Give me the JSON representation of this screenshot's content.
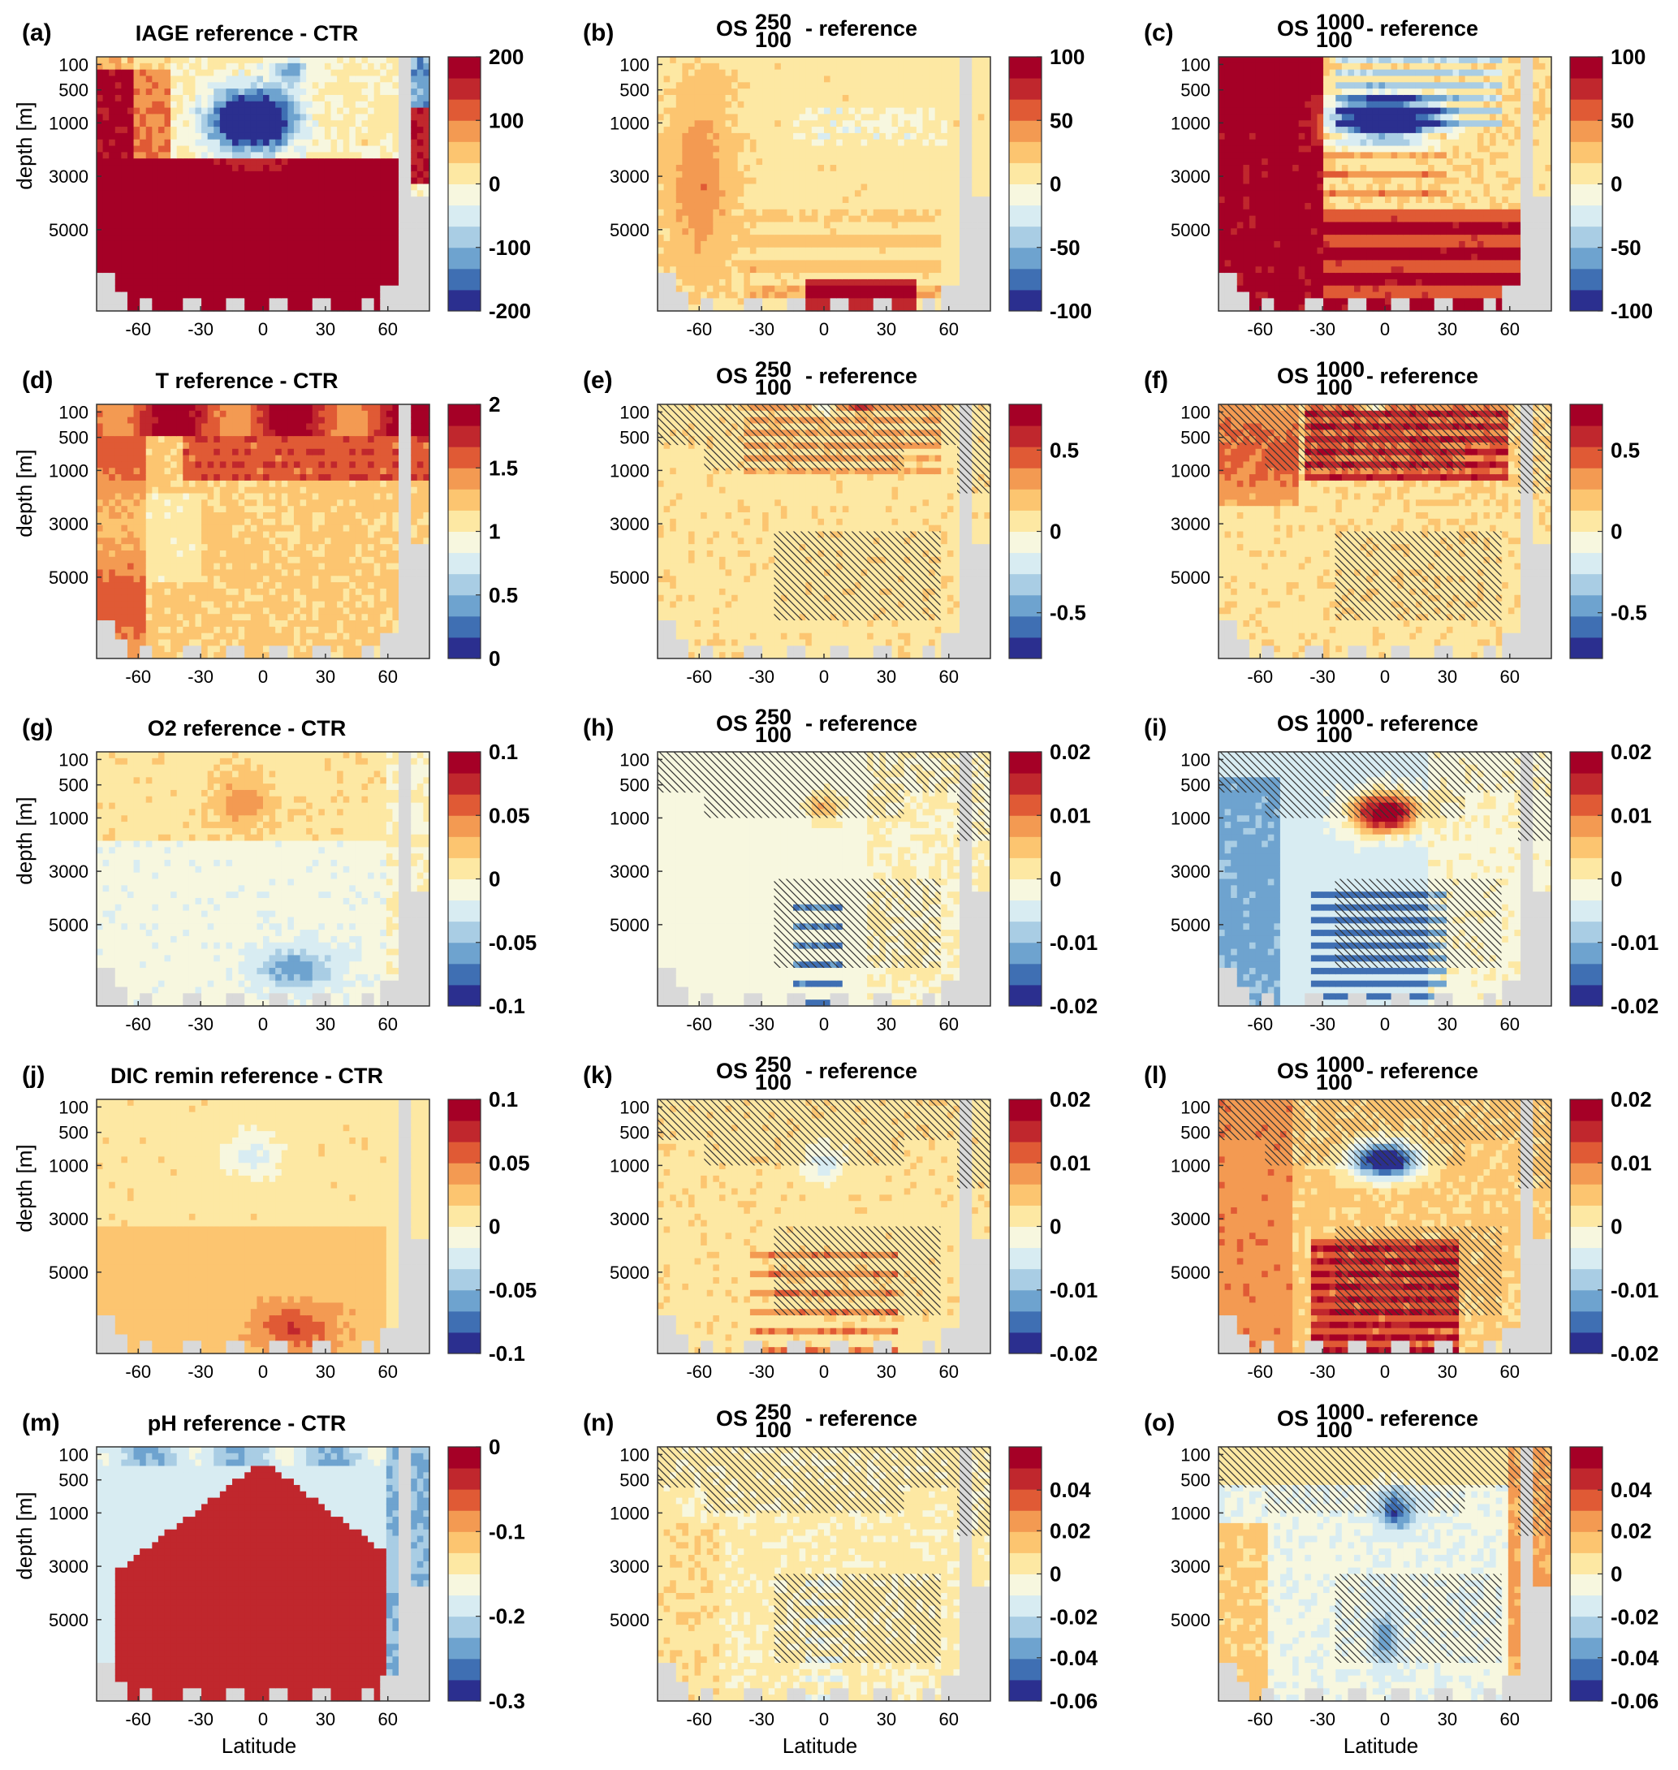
{
  "chart_data": [
    {
      "type": "heatmap",
      "panel_label": "(a)",
      "title_main": "IAGE reference - CTR",
      "title_sup": "",
      "title_sub": "",
      "title_tail": "",
      "cbar_ticks": [
        "200",
        "100",
        "0",
        "-100",
        "-200"
      ],
      "cmin": -200,
      "cmax": 200,
      "pattern": "iage_ref",
      "hatch": false
    },
    {
      "type": "heatmap",
      "panel_label": "(b)",
      "title_main": "OS",
      "title_sup": "250",
      "title_sub": "100",
      "title_tail": "- reference",
      "cbar_ticks": [
        "100",
        "50",
        "0",
        "-50",
        "-100"
      ],
      "cmin": -100,
      "cmax": 100,
      "pattern": "iage_250",
      "hatch": false
    },
    {
      "type": "heatmap",
      "panel_label": "(c)",
      "title_main": "OS",
      "title_sup": "1000",
      "title_sub": "100",
      "title_tail": "- reference",
      "cbar_ticks": [
        "100",
        "50",
        "0",
        "-50",
        "-100"
      ],
      "cmin": -100,
      "cmax": 100,
      "pattern": "iage_1000",
      "hatch": false
    },
    {
      "type": "heatmap",
      "panel_label": "(d)",
      "title_main": "T reference - CTR",
      "title_sup": "",
      "title_sub": "",
      "title_tail": "",
      "cbar_ticks": [
        "2",
        "1.5",
        "1",
        "0.5",
        "0"
      ],
      "cmin": 0,
      "cmax": 2,
      "pattern": "t_ref",
      "hatch": false
    },
    {
      "type": "heatmap",
      "panel_label": "(e)",
      "title_main": "OS",
      "title_sup": "250",
      "title_sub": "100",
      "title_tail": "- reference",
      "cbar_ticks": [
        "0.5",
        "0",
        "-0.5"
      ],
      "cmin": -0.8,
      "cmax": 0.8,
      "pattern": "t_250",
      "hatch": true
    },
    {
      "type": "heatmap",
      "panel_label": "(f)",
      "title_main": "OS",
      "title_sup": "1000",
      "title_sub": "100",
      "title_tail": "- reference",
      "cbar_ticks": [
        "0.5",
        "0",
        "-0.5"
      ],
      "cmin": -0.8,
      "cmax": 0.8,
      "pattern": "t_1000",
      "hatch": true
    },
    {
      "type": "heatmap",
      "panel_label": "(g)",
      "title_main": "O2 reference - CTR",
      "title_sup": "",
      "title_sub": "",
      "title_tail": "",
      "cbar_ticks": [
        "0.1",
        "0.05",
        "0",
        "-0.05",
        "-0.1"
      ],
      "cmin": -0.1,
      "cmax": 0.1,
      "pattern": "o2_ref",
      "hatch": false
    },
    {
      "type": "heatmap",
      "panel_label": "(h)",
      "title_main": "OS",
      "title_sup": "250",
      "title_sub": "100",
      "title_tail": "- reference",
      "cbar_ticks": [
        "0.02",
        "0.01",
        "0",
        "-0.01",
        "-0.02"
      ],
      "cmin": -0.02,
      "cmax": 0.02,
      "pattern": "o2_250",
      "hatch": true
    },
    {
      "type": "heatmap",
      "panel_label": "(i)",
      "title_main": "OS",
      "title_sup": "1000",
      "title_sub": "100",
      "title_tail": "- reference",
      "cbar_ticks": [
        "0.02",
        "0.01",
        "0",
        "-0.01",
        "-0.02"
      ],
      "cmin": -0.02,
      "cmax": 0.02,
      "pattern": "o2_1000",
      "hatch": true
    },
    {
      "type": "heatmap",
      "panel_label": "(j)",
      "title_main": "DIC remin reference - CTR",
      "title_sup": "",
      "title_sub": "",
      "title_tail": "",
      "cbar_ticks": [
        "0.1",
        "0.05",
        "0",
        "-0.05",
        "-0.1"
      ],
      "cmin": -0.1,
      "cmax": 0.1,
      "pattern": "dic_ref",
      "hatch": false
    },
    {
      "type": "heatmap",
      "panel_label": "(k)",
      "title_main": "OS",
      "title_sup": "250",
      "title_sub": "100",
      "title_tail": "- reference",
      "cbar_ticks": [
        "0.02",
        "0.01",
        "0",
        "-0.01",
        "-0.02"
      ],
      "cmin": -0.02,
      "cmax": 0.02,
      "pattern": "dic_250",
      "hatch": true
    },
    {
      "type": "heatmap",
      "panel_label": "(l)",
      "title_main": "OS",
      "title_sup": "1000",
      "title_sub": "100",
      "title_tail": "- reference",
      "cbar_ticks": [
        "0.02",
        "0.01",
        "0",
        "-0.01",
        "-0.02"
      ],
      "cmin": -0.02,
      "cmax": 0.02,
      "pattern": "dic_1000",
      "hatch": true
    },
    {
      "type": "heatmap",
      "panel_label": "(m)",
      "title_main": "pH reference - CTR",
      "title_sup": "",
      "title_sub": "",
      "title_tail": "",
      "cbar_ticks": [
        "0",
        "-0.1",
        "-0.2",
        "-0.3"
      ],
      "cmin": -0.3,
      "cmax": 0,
      "pattern": "ph_ref",
      "hatch": false
    },
    {
      "type": "heatmap",
      "panel_label": "(n)",
      "title_main": "OS",
      "title_sup": "250",
      "title_sub": "100",
      "title_tail": "- reference",
      "cbar_ticks": [
        "0.04",
        "0.02",
        "0",
        "-0.02",
        "-0.04",
        "-0.06"
      ],
      "cmin": -0.06,
      "cmax": 0.06,
      "pattern": "ph_250",
      "hatch": true
    },
    {
      "type": "heatmap",
      "panel_label": "(o)",
      "title_main": "OS",
      "title_sup": "1000",
      "title_sub": "100",
      "title_tail": "- reference",
      "cbar_ticks": [
        "0.04",
        "0.02",
        "0",
        "-0.02",
        "-0.04",
        "-0.06"
      ],
      "cmin": -0.06,
      "cmax": 0.06,
      "pattern": "ph_1000",
      "hatch": true
    }
  ],
  "axes": {
    "ylabel": "depth [m]",
    "xlabel": "Latitude",
    "yticks": [
      "100",
      "500",
      "1000",
      "3000",
      "5000"
    ],
    "xticks": [
      "-60",
      "-30",
      "0",
      "30",
      "60"
    ],
    "x_values": [
      -60,
      -30,
      0,
      30,
      60
    ],
    "xlim": [
      -80,
      80
    ]
  },
  "colors": {
    "scale": [
      "#2b2f8f",
      "#3f6fb3",
      "#6ea3cf",
      "#a9cde4",
      "#d8ecf2",
      "#f7f7df",
      "#fde8a3",
      "#fcc570",
      "#f39a52",
      "#e05a35",
      "#c0272d",
      "#a50026"
    ],
    "land": "#d9d9d9",
    "hatch": "#333333"
  }
}
